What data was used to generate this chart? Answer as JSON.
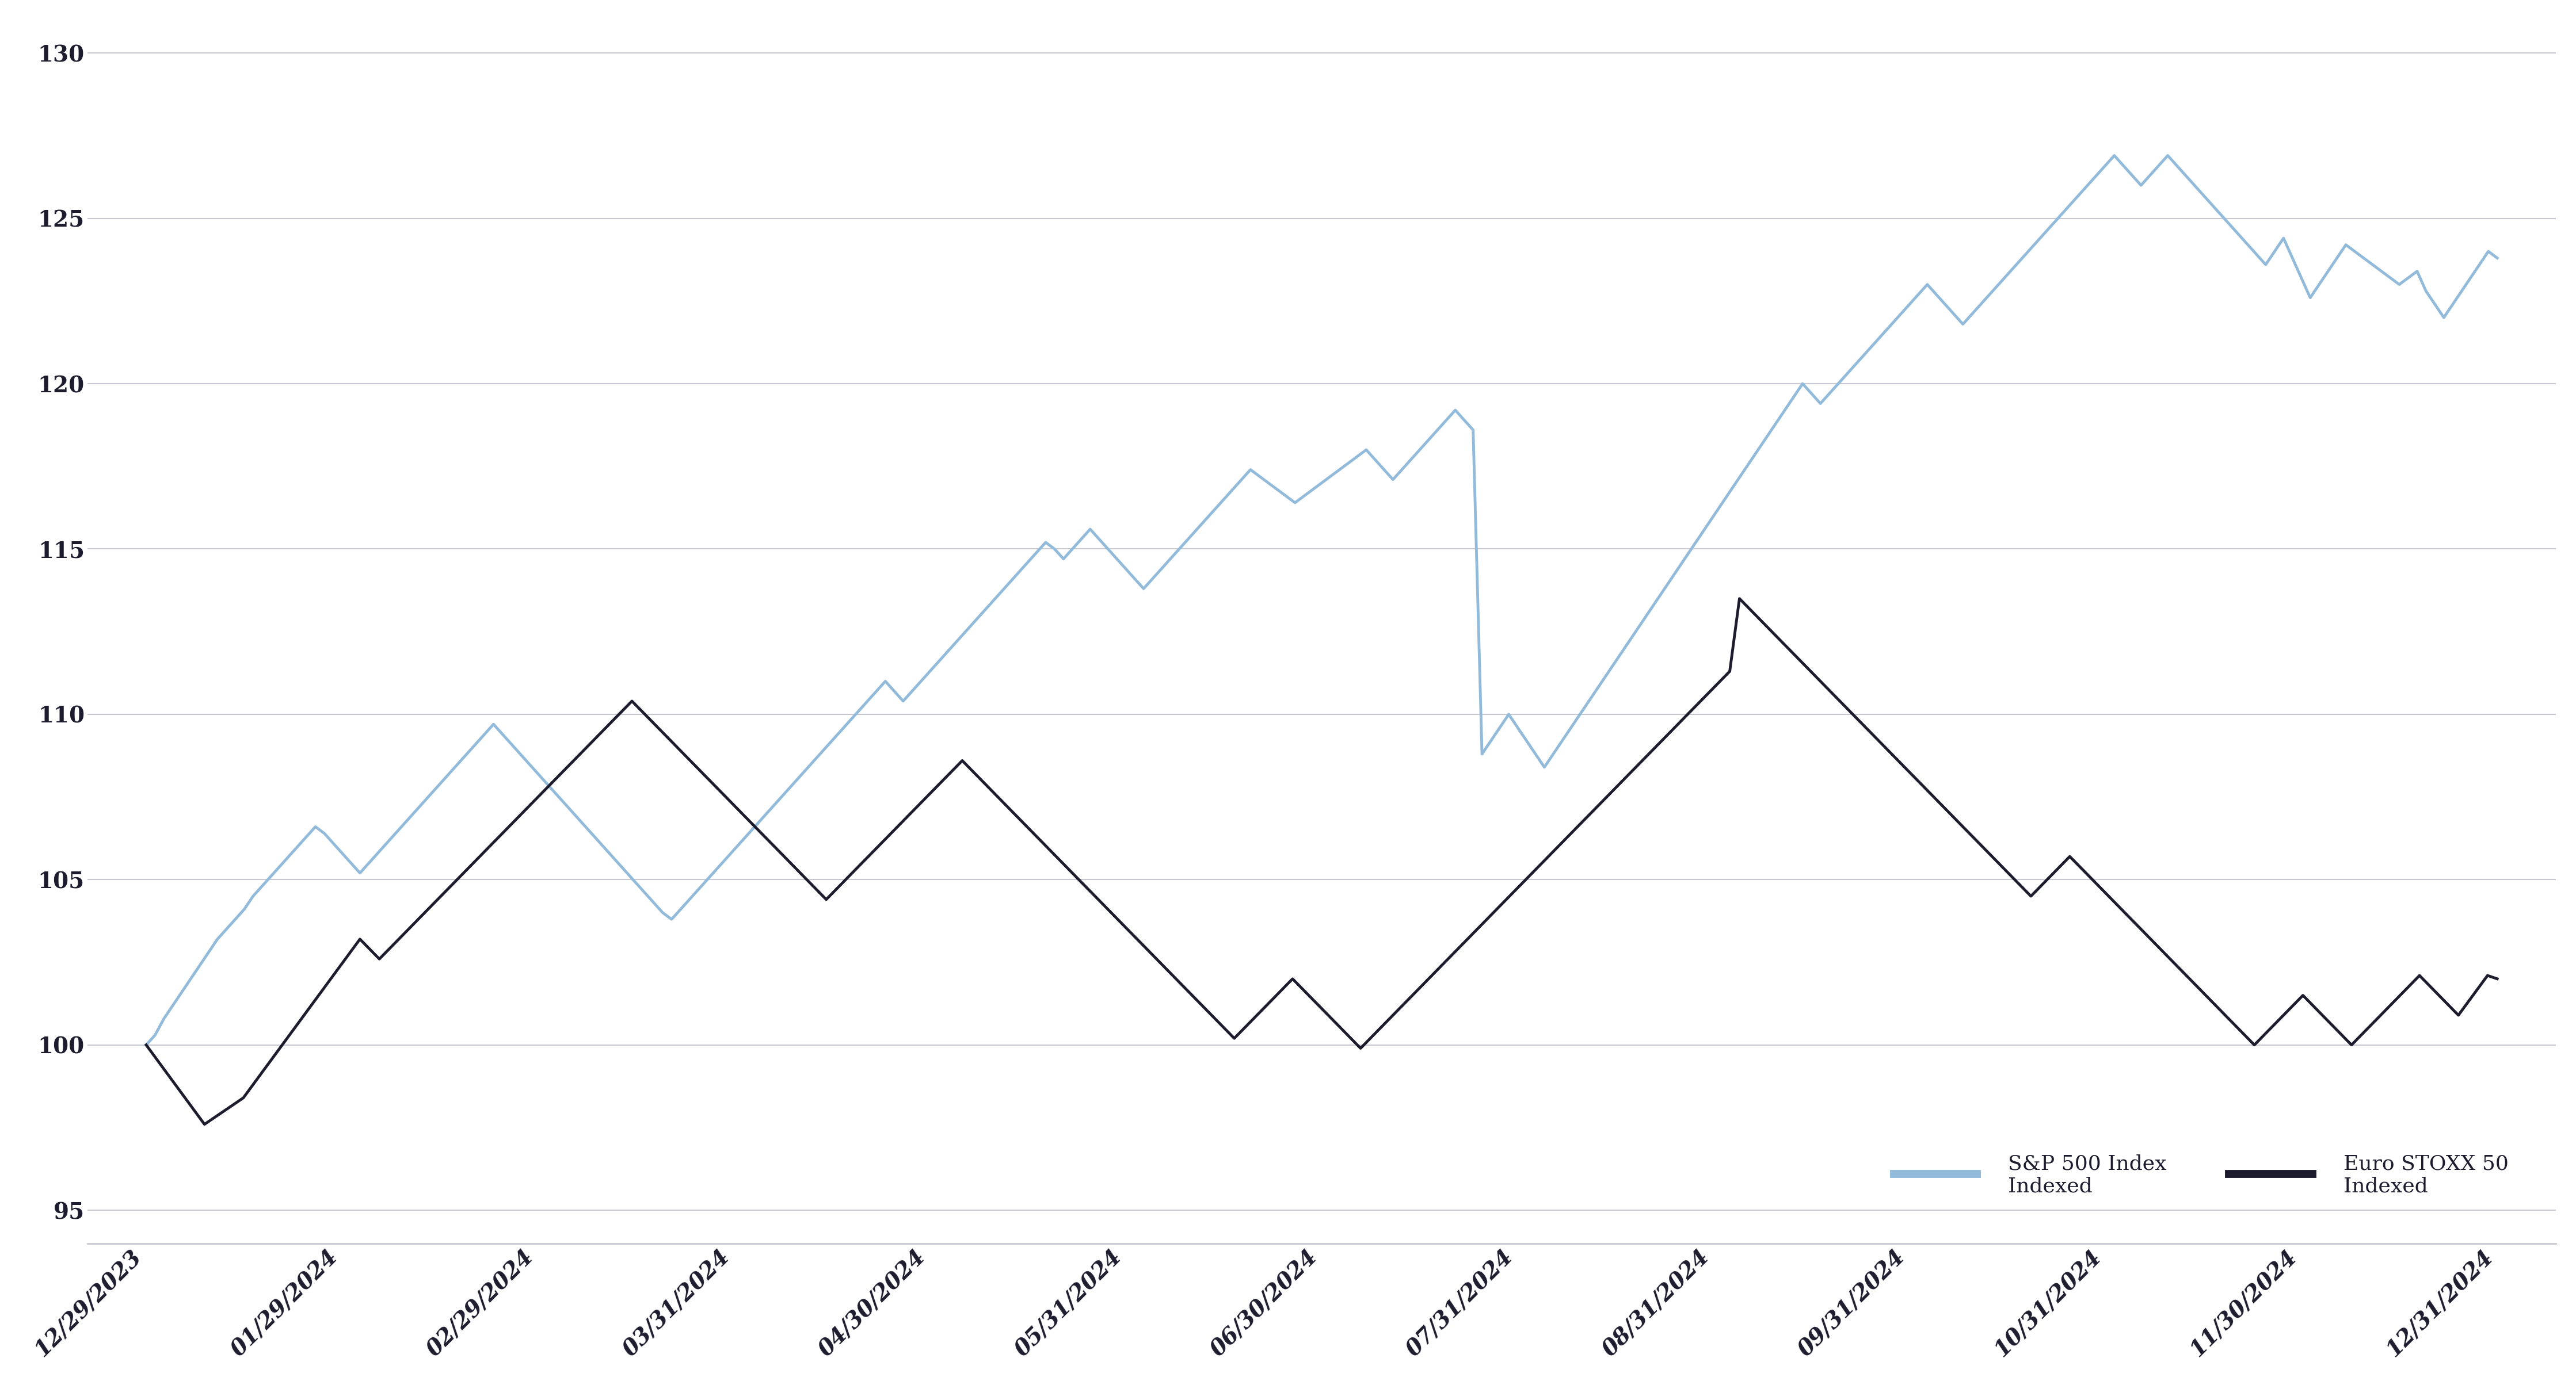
{
  "sp500": [
    100.0,
    100.3,
    100.8,
    101.2,
    101.6,
    102.0,
    102.4,
    102.8,
    103.2,
    103.5,
    103.8,
    104.1,
    104.5,
    104.8,
    105.1,
    105.4,
    105.7,
    106.0,
    106.3,
    106.6,
    106.4,
    106.1,
    105.8,
    105.5,
    105.2,
    105.5,
    105.8,
    106.1,
    106.4,
    106.7,
    107.0,
    107.3,
    107.6,
    107.9,
    108.2,
    108.5,
    108.8,
    109.1,
    109.4,
    109.7,
    109.4,
    109.1,
    108.8,
    108.5,
    108.2,
    107.9,
    107.6,
    107.3,
    107.0,
    106.7,
    106.4,
    106.1,
    105.8,
    105.5,
    105.2,
    104.9,
    104.6,
    104.3,
    104.0,
    103.8,
    104.1,
    104.4,
    104.7,
    105.0,
    105.3,
    105.6,
    105.9,
    106.2,
    106.5,
    106.8,
    107.1,
    107.4,
    107.7,
    108.0,
    108.3,
    108.6,
    108.9,
    109.2,
    109.5,
    109.8,
    110.1,
    110.4,
    110.7,
    111.0,
    110.7,
    110.4,
    110.7,
    111.0,
    111.3,
    111.6,
    111.9,
    112.2,
    112.5,
    112.8,
    113.1,
    113.4,
    113.7,
    114.0,
    114.3,
    114.6,
    114.9,
    115.2,
    115.0,
    114.7,
    115.0,
    115.3,
    115.6,
    115.3,
    115.0,
    114.7,
    114.4,
    114.1,
    113.8,
    114.1,
    114.4,
    114.7,
    115.0,
    115.3,
    115.6,
    115.9,
    116.2,
    116.5,
    116.8,
    117.1,
    117.4,
    117.2,
    117.0,
    116.8,
    116.6,
    116.4,
    116.6,
    116.8,
    117.0,
    117.2,
    117.4,
    117.6,
    117.8,
    118.0,
    117.7,
    117.4,
    117.1,
    117.4,
    117.7,
    118.0,
    118.3,
    118.6,
    118.9,
    119.2,
    118.9,
    118.6,
    108.8,
    109.2,
    109.6,
    110.0,
    109.6,
    109.2,
    108.8,
    108.4,
    108.8,
    109.2,
    109.6,
    110.0,
    110.4,
    110.8,
    111.2,
    111.6,
    112.0,
    112.4,
    112.8,
    113.2,
    113.6,
    114.0,
    114.4,
    114.8,
    115.2,
    115.6,
    116.0,
    116.4,
    116.8,
    117.2,
    117.6,
    118.0,
    118.4,
    118.8,
    119.2,
    119.6,
    120.0,
    119.7,
    119.4,
    119.7,
    120.0,
    120.3,
    120.6,
    120.9,
    121.2,
    121.5,
    121.8,
    122.1,
    122.4,
    122.7,
    123.0,
    122.7,
    122.4,
    122.1,
    121.8,
    122.1,
    122.4,
    122.7,
    123.0,
    123.3,
    123.6,
    123.9,
    124.2,
    124.5,
    124.8,
    125.1,
    125.4,
    125.7,
    126.0,
    126.3,
    126.6,
    126.9,
    126.6,
    126.3,
    126.0,
    126.3,
    126.6,
    126.9,
    126.6,
    126.3,
    126.0,
    125.7,
    125.4,
    125.1,
    124.8,
    124.5,
    124.2,
    123.9,
    123.6,
    124.0,
    124.4,
    123.8,
    123.2,
    122.6,
    123.0,
    123.4,
    123.8,
    124.2,
    124.0,
    123.8,
    123.6,
    123.4,
    123.2,
    123.0,
    123.2,
    123.4,
    122.8,
    122.4,
    122.0,
    122.4,
    122.8,
    123.2,
    123.6,
    124.0,
    123.8
  ],
  "eurostoxx": [
    100.0,
    99.6,
    99.2,
    98.8,
    98.4,
    98.0,
    97.6,
    97.8,
    98.0,
    98.2,
    98.4,
    98.8,
    99.2,
    99.6,
    100.0,
    100.4,
    100.8,
    101.2,
    101.6,
    102.0,
    102.4,
    102.8,
    103.2,
    102.9,
    102.6,
    102.9,
    103.2,
    103.5,
    103.8,
    104.1,
    104.4,
    104.7,
    105.0,
    105.3,
    105.6,
    105.9,
    106.2,
    106.5,
    106.8,
    107.1,
    107.4,
    107.7,
    108.0,
    108.3,
    108.6,
    108.9,
    109.2,
    109.5,
    109.8,
    110.1,
    110.4,
    110.1,
    109.8,
    109.5,
    109.2,
    108.9,
    108.6,
    108.3,
    108.0,
    107.7,
    107.4,
    107.1,
    106.8,
    106.5,
    106.2,
    105.9,
    105.6,
    105.3,
    105.0,
    104.7,
    104.4,
    104.7,
    105.0,
    105.3,
    105.6,
    105.9,
    106.2,
    106.5,
    106.8,
    107.1,
    107.4,
    107.7,
    108.0,
    108.3,
    108.6,
    108.3,
    108.0,
    107.7,
    107.4,
    107.1,
    106.8,
    106.5,
    106.2,
    105.9,
    105.6,
    105.3,
    105.0,
    104.7,
    104.4,
    104.1,
    103.8,
    103.5,
    103.2,
    102.9,
    102.6,
    102.3,
    102.0,
    101.7,
    101.4,
    101.1,
    100.8,
    100.5,
    100.2,
    100.5,
    100.8,
    101.1,
    101.4,
    101.7,
    102.0,
    101.7,
    101.4,
    101.1,
    100.8,
    100.5,
    100.2,
    99.9,
    100.2,
    100.5,
    100.8,
    101.1,
    101.4,
    101.7,
    102.0,
    102.3,
    102.6,
    102.9,
    103.2,
    103.5,
    103.8,
    104.1,
    104.4,
    104.7,
    105.0,
    105.3,
    105.6,
    105.9,
    106.2,
    106.5,
    106.8,
    107.1,
    107.4,
    107.7,
    108.0,
    108.3,
    108.6,
    108.9,
    109.2,
    109.5,
    109.8,
    110.1,
    110.4,
    110.7,
    111.0,
    111.3,
    113.5,
    113.2,
    112.9,
    112.6,
    112.3,
    112.0,
    111.7,
    111.4,
    111.1,
    110.8,
    110.5,
    110.2,
    109.9,
    109.6,
    109.3,
    109.0,
    108.7,
    108.4,
    108.1,
    107.8,
    107.5,
    107.2,
    106.9,
    106.6,
    106.3,
    106.0,
    105.7,
    105.4,
    105.1,
    104.8,
    104.5,
    104.8,
    105.1,
    105.4,
    105.7,
    105.4,
    105.1,
    104.8,
    104.5,
    104.2,
    103.9,
    103.6,
    103.3,
    103.0,
    102.7,
    102.4,
    102.1,
    101.8,
    101.5,
    101.2,
    100.9,
    100.6,
    100.3,
    100.0,
    100.3,
    100.6,
    100.9,
    101.2,
    101.5,
    101.2,
    100.9,
    100.6,
    100.3,
    100.0,
    100.3,
    100.6,
    100.9,
    101.2,
    101.5,
    101.8,
    102.1,
    101.8,
    101.5,
    101.2,
    100.9,
    101.3,
    101.7,
    102.1,
    102.0
  ],
  "x_tick_labels": [
    "12/29/2023",
    "01/29/2024",
    "02/29/2024",
    "03/31/2024",
    "04/30/2024",
    "05/31/2024",
    "06/30/2024",
    "07/31/2024",
    "08/31/2024",
    "09/31/2024",
    "10/31/2024",
    "11/30/2024",
    "12/31/2024"
  ],
  "ylim": [
    94,
    131
  ],
  "yticks": [
    95,
    100,
    105,
    110,
    115,
    120,
    125,
    130
  ],
  "sp500_color": "#92bbdb",
  "eurostoxx_color": "#1c1c2e",
  "background_color": "#ffffff",
  "grid_color": "#c8c8d0",
  "legend_sp500_label": "S&P 500 Index",
  "legend_sp500_sublabel": "Indexed",
  "legend_euro_label": "Euro STOXX 50",
  "legend_euro_sublabel": "Indexed",
  "sp500_linewidth": 3.5,
  "eurostoxx_linewidth": 3.5,
  "tick_label_color": "#1c1c2e",
  "tick_fontsize": 28,
  "legend_fontsize": 26
}
